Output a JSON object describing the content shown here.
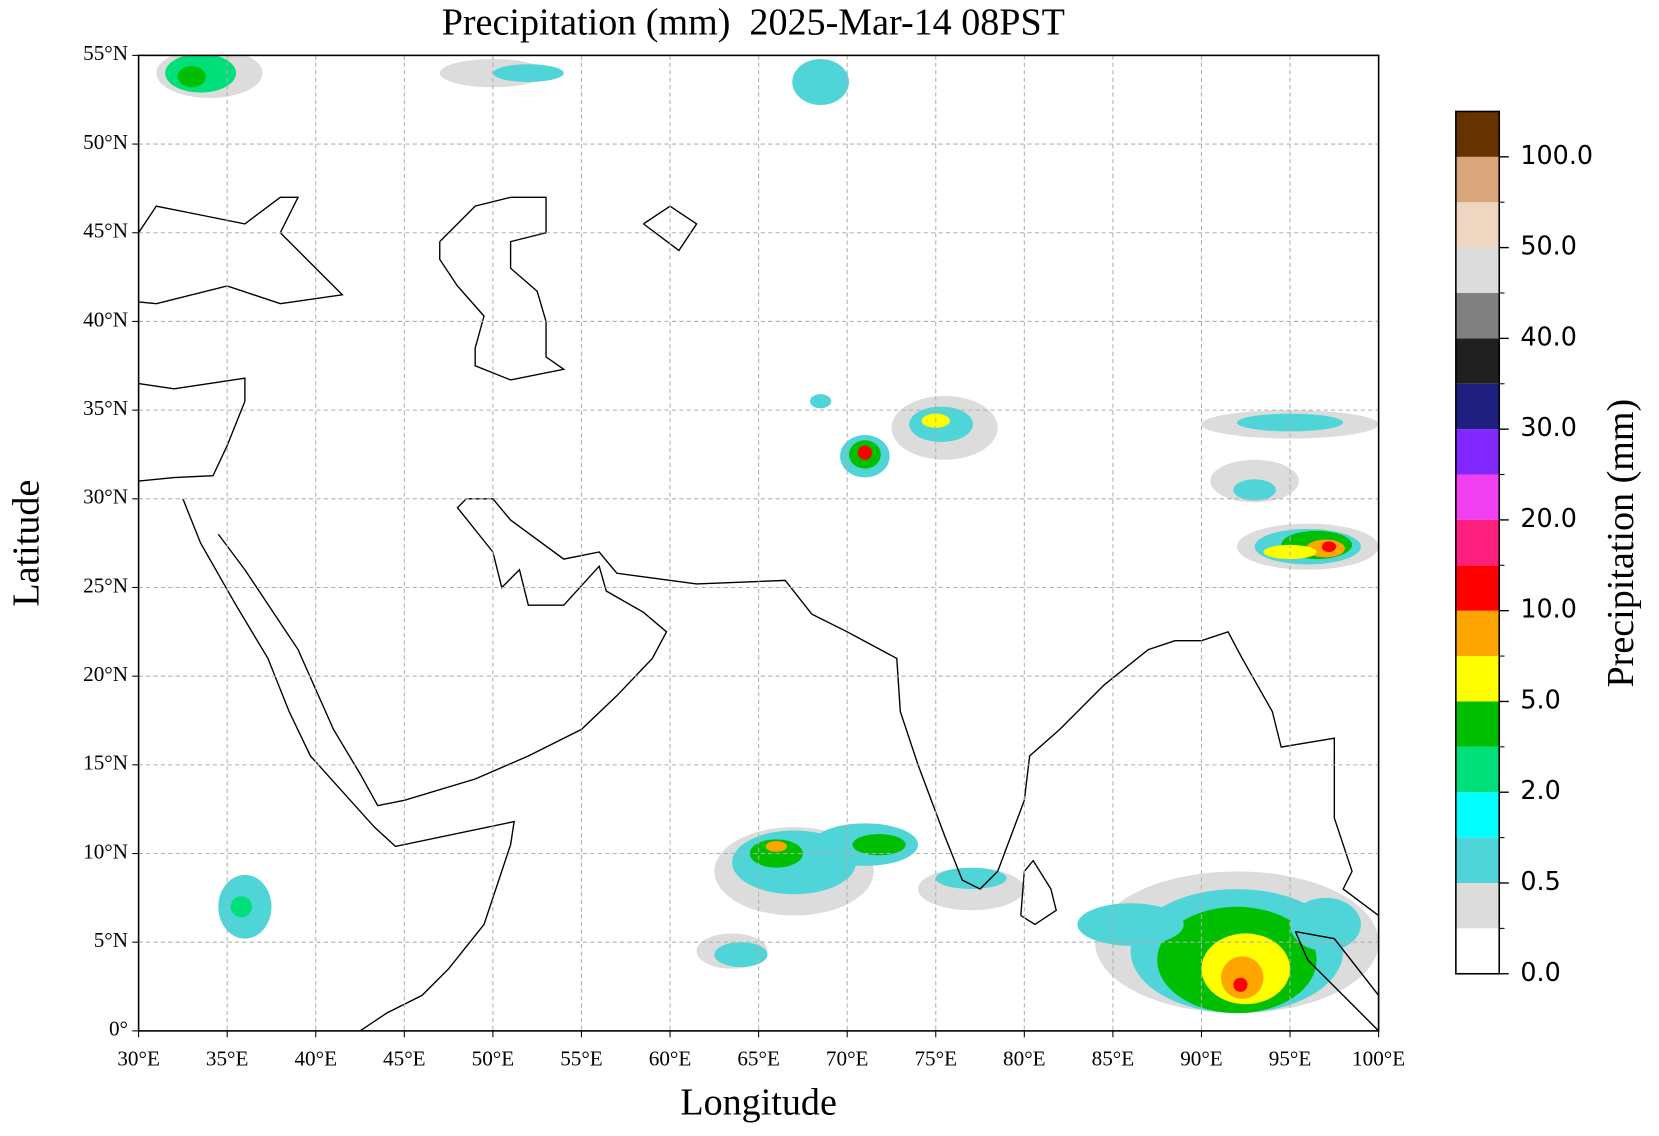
{
  "title": "Precipitation (mm)  2025-Mar-14 08PST",
  "map": {
    "xlabel": "Longitude",
    "ylabel": "Latitude",
    "xlim": [
      30,
      100
    ],
    "ylim": [
      0,
      55
    ],
    "grid": true,
    "xticks": [
      {
        "value": 30,
        "label": "30°E"
      },
      {
        "value": 35,
        "label": "35°E"
      },
      {
        "value": 40,
        "label": "40°E"
      },
      {
        "value": 45,
        "label": "45°E"
      },
      {
        "value": 50,
        "label": "50°E"
      },
      {
        "value": 55,
        "label": "55°E"
      },
      {
        "value": 60,
        "label": "60°E"
      },
      {
        "value": 65,
        "label": "65°E"
      },
      {
        "value": 70,
        "label": "70°E"
      },
      {
        "value": 75,
        "label": "75°E"
      },
      {
        "value": 80,
        "label": "80°E"
      },
      {
        "value": 85,
        "label": "85°E"
      },
      {
        "value": 90,
        "label": "90°E"
      },
      {
        "value": 95,
        "label": "95°E"
      },
      {
        "value": 100,
        "label": "100°E"
      }
    ],
    "yticks": [
      {
        "value": 0,
        "label": "0°"
      },
      {
        "value": 5,
        "label": "5°N"
      },
      {
        "value": 10,
        "label": "10°N"
      },
      {
        "value": 15,
        "label": "15°N"
      },
      {
        "value": 20,
        "label": "20°N"
      },
      {
        "value": 25,
        "label": "25°N"
      },
      {
        "value": 30,
        "label": "30°N"
      },
      {
        "value": 35,
        "label": "35°N"
      },
      {
        "value": 40,
        "label": "40°N"
      },
      {
        "value": 45,
        "label": "45°N"
      },
      {
        "value": 50,
        "label": "50°N"
      },
      {
        "value": 55,
        "label": "55°N"
      }
    ]
  },
  "colorbar": {
    "label": "Precipitation (mm)",
    "colors": [
      "#ffffff",
      "#dcdcdc",
      "#4fd4d8",
      "#00ffff",
      "#00e07a",
      "#00bf00",
      "#ffff00",
      "#ffa500",
      "#ff0000",
      "#ff1f7f",
      "#f040f0",
      "#8028ff",
      "#1f1f80",
      "#202020",
      "#808080",
      "#dcdcdc",
      "#efd6c0",
      "#d8a67a",
      "#663300"
    ],
    "ticks": [
      {
        "value": 0,
        "label": "0.0"
      },
      0.5,
      {
        "value": 2,
        "label": "2.0"
      },
      {
        "value": 5,
        "label": "5.0"
      },
      {
        "value": 10,
        "label": "10.0"
      },
      {
        "value": 20,
        "label": "20.0"
      },
      {
        "value": 30,
        "label": "30.0"
      },
      {
        "value": 40,
        "label": "40.0"
      },
      {
        "value": 50,
        "label": "50.0"
      },
      {
        "value": 100,
        "label": "100.0"
      }
    ]
  }
}
